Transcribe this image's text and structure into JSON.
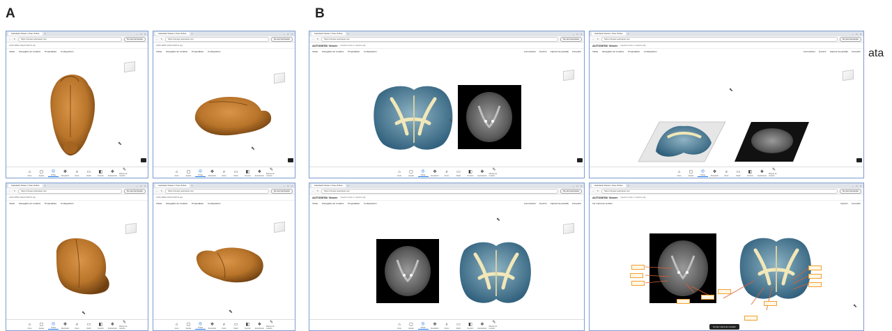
{
  "panels": {
    "A": "A",
    "B": "B"
  },
  "stray_text": "ata",
  "browser": {
    "tab_title": "Autodesk Viewer | Free Online",
    "url_a": "https://viewer.autodesk.com",
    "url_b": "https://viewer.autodesk.com",
    "sync_label": "No sincronizando",
    "file_a": "2150 2850 10020 WSTN.obj",
    "file_b": "cerebro corte 1 cerebro.obj"
  },
  "app": {
    "brand": "AUTODESK Viewer",
    "menu_a": [
      "Vistas",
      "Navegador de modelos",
      "Propiedades",
      "Configuración"
    ],
    "menu_b": [
      "Vistas",
      "Navegador de modelos",
      "Propiedades",
      "Configuración"
    ],
    "right_tools": [
      "Comentarios",
      "Imprimir",
      "Captura de pantalla",
      "Compartir"
    ],
    "markup_title": "Ver marca de revisión"
  },
  "bottom_toolbar": [
    "Inicio",
    "Ajustar",
    "Órbita",
    "Desplazar",
    "Zoom",
    "Medir",
    "Sección",
    "Explosionar",
    "Marcas de revisión"
  ],
  "status": {
    "markup_hint": "Cerrar marca de revisión"
  },
  "colors": {
    "brain_orange": "#b8742a",
    "window_border": "#7a9ccf",
    "annotation": "#f0a030",
    "accent": "#1a73e8"
  },
  "icons": {
    "home": "home-icon",
    "fit": "fit-icon",
    "orbit": "orbit-icon",
    "pan": "pan-icon",
    "zoom": "zoom-icon",
    "measure": "measure-icon",
    "section": "section-icon",
    "explode": "explode-icon",
    "markup": "markup-icon"
  }
}
